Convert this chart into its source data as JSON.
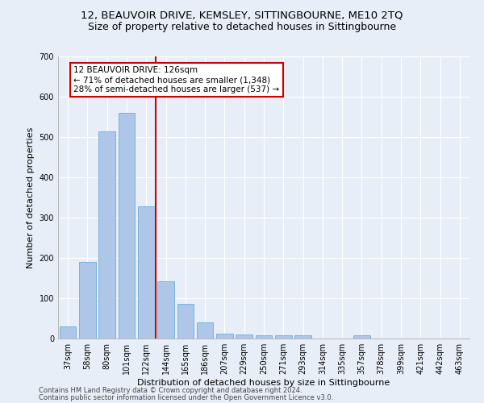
{
  "title1": "12, BEAUVOIR DRIVE, KEMSLEY, SITTINGBOURNE, ME10 2TQ",
  "title2": "Size of property relative to detached houses in Sittingbourne",
  "xlabel": "Distribution of detached houses by size in Sittingbourne",
  "ylabel": "Number of detached properties",
  "categories": [
    "37sqm",
    "58sqm",
    "80sqm",
    "101sqm",
    "122sqm",
    "144sqm",
    "165sqm",
    "186sqm",
    "207sqm",
    "229sqm",
    "250sqm",
    "271sqm",
    "293sqm",
    "314sqm",
    "335sqm",
    "357sqm",
    "378sqm",
    "399sqm",
    "421sqm",
    "442sqm",
    "463sqm"
  ],
  "values": [
    30,
    190,
    515,
    560,
    328,
    143,
    86,
    40,
    13,
    10,
    9,
    9,
    9,
    0,
    0,
    8,
    0,
    0,
    0,
    0,
    0
  ],
  "bar_color": "#aec6e8",
  "bar_edge_color": "#6aaed6",
  "vline_index": 4,
  "vline_color": "#cc0000",
  "annotation_text": "12 BEAUVOIR DRIVE: 126sqm\n← 71% of detached houses are smaller (1,348)\n28% of semi-detached houses are larger (537) →",
  "annotation_box_facecolor": "#ffffff",
  "annotation_box_edgecolor": "#cc0000",
  "ylim": [
    0,
    700
  ],
  "yticks": [
    0,
    100,
    200,
    300,
    400,
    500,
    600,
    700
  ],
  "footer1": "Contains HM Land Registry data © Crown copyright and database right 2024.",
  "footer2": "Contains public sector information licensed under the Open Government Licence v3.0.",
  "bg_color": "#e8eef8",
  "plot_bg_color": "#e8eef8",
  "title1_fontsize": 9.5,
  "title2_fontsize": 9,
  "axis_label_fontsize": 8,
  "tick_fontsize": 7,
  "annot_fontsize": 7.5,
  "footer_fontsize": 6
}
